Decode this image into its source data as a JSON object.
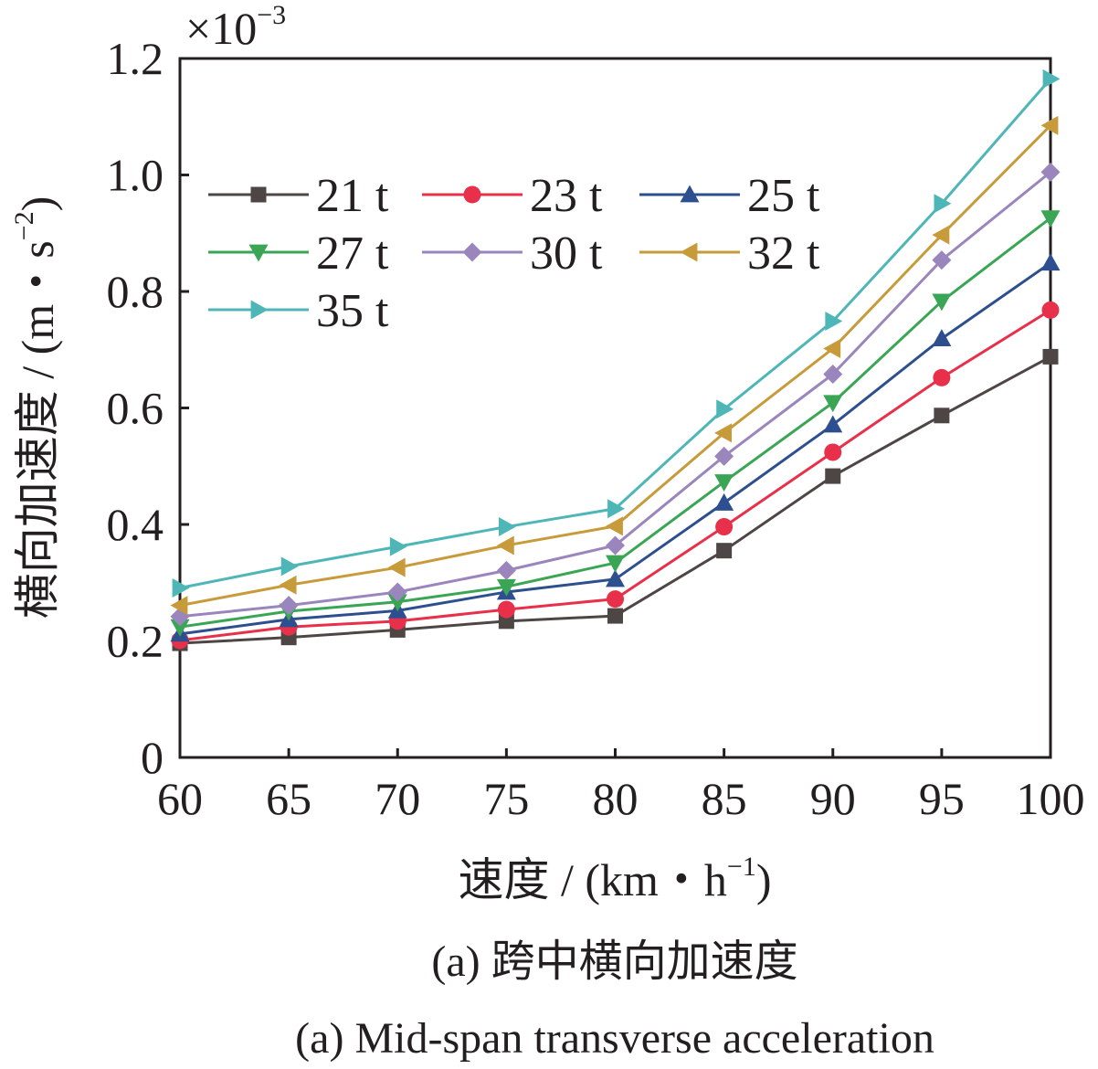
{
  "chart_data": {
    "type": "line",
    "x": [
      60,
      65,
      70,
      75,
      80,
      85,
      90,
      95,
      100
    ],
    "xlabel_parts": [
      "速度 / (km・h",
      "−1",
      ")"
    ],
    "ylabel_parts": [
      "横向加速度 / (m・s",
      "−2",
      ")"
    ],
    "y_multiplier_parts": [
      "×10",
      "−3"
    ],
    "xlim": [
      60,
      100
    ],
    "ylim": [
      0,
      1.2
    ],
    "x_ticks": [
      "60",
      "65",
      "70",
      "75",
      "80",
      "85",
      "90",
      "95",
      "100"
    ],
    "y_ticks": [
      {
        "value": 0,
        "label": "0"
      },
      {
        "value": 0.2,
        "label": "0.2"
      },
      {
        "value": 0.4,
        "label": "0.4"
      },
      {
        "value": 0.6,
        "label": "0.6"
      },
      {
        "value": 0.8,
        "label": "0.8"
      },
      {
        "value": 1.0,
        "label": "1.0"
      },
      {
        "value": 1.2,
        "label": "1.2"
      }
    ],
    "grid": false,
    "legend_position": "top-left",
    "series": [
      {
        "name": "21 t",
        "color": "#4d4644",
        "marker": "square",
        "values": [
          0.196,
          0.206,
          0.219,
          0.234,
          0.243,
          0.355,
          0.483,
          0.587,
          0.688
        ]
      },
      {
        "name": "23 t",
        "color": "#e8304a",
        "marker": "circle",
        "values": [
          0.201,
          0.224,
          0.234,
          0.254,
          0.272,
          0.396,
          0.524,
          0.652,
          0.768
        ]
      },
      {
        "name": "25 t",
        "color": "#2e4f8f",
        "marker": "triangle-up",
        "values": [
          0.212,
          0.237,
          0.252,
          0.284,
          0.306,
          0.437,
          0.571,
          0.719,
          0.849
        ]
      },
      {
        "name": "27 t",
        "color": "#3aa655",
        "marker": "triangle-down",
        "values": [
          0.224,
          0.251,
          0.267,
          0.293,
          0.334,
          0.473,
          0.609,
          0.783,
          0.926
        ]
      },
      {
        "name": "30 t",
        "color": "#9b85bd",
        "marker": "diamond",
        "values": [
          0.242,
          0.261,
          0.284,
          0.321,
          0.364,
          0.517,
          0.658,
          0.854,
          1.005
        ]
      },
      {
        "name": "32 t",
        "color": "#c79a3a",
        "marker": "triangle-left",
        "values": [
          0.261,
          0.296,
          0.326,
          0.364,
          0.397,
          0.557,
          0.702,
          0.897,
          1.085
        ]
      },
      {
        "name": "35 t",
        "color": "#4fb6b8",
        "marker": "triangle-right",
        "values": [
          0.291,
          0.328,
          0.362,
          0.396,
          0.427,
          0.598,
          0.749,
          0.951,
          1.165
        ]
      }
    ]
  },
  "caption": {
    "chinese": "(a)  跨中横向加速度",
    "english": "(a)  Mid-span transverse acceleration"
  }
}
